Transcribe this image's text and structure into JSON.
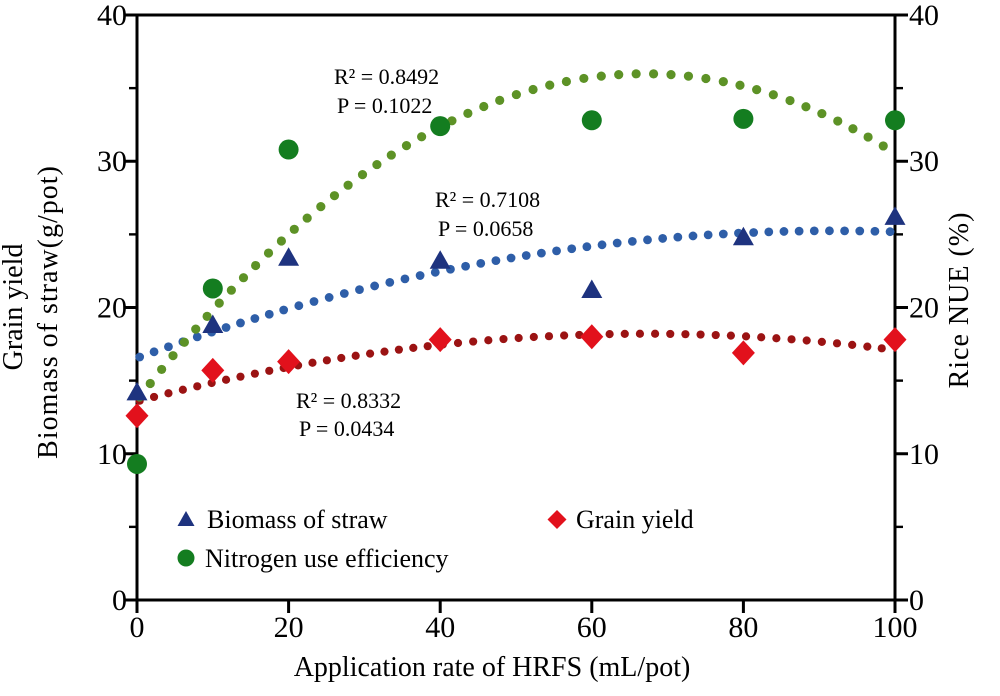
{
  "figure": {
    "x_axis_title": "Application rate of HRFS (mL/pot)",
    "left_axis_title_line1": "Grain yield",
    "left_axis_title_line2": "Biomass of straw(g/pot)",
    "right_axis_title": "Rice NUE (%)"
  },
  "chart_data": {
    "type": "scatter",
    "title": "",
    "xlabel": "Application rate of HRFS (mL/pot)",
    "ylabel_left": "Grain yield / Biomass of straw(g/pot)",
    "ylabel_right": "Rice NUE (%)",
    "xlim": [
      0,
      100
    ],
    "ylim_left": [
      0,
      40
    ],
    "ylim_right": [
      0,
      40
    ],
    "x_tick_labels": [
      "0",
      "20",
      "40",
      "60",
      "80",
      "100"
    ],
    "left_y_tick_labels": [
      "40",
      "30",
      "20",
      "10",
      "0"
    ],
    "right_y_tick_labels": [
      "40",
      "30",
      "20",
      "10",
      "0"
    ],
    "grid": "off",
    "legend_position": "inside-bottom-left",
    "x_values": [
      0,
      10,
      20,
      40,
      60,
      80,
      100
    ],
    "series": [
      {
        "name": "Biomass of straw",
        "axis": "left",
        "marker": "triangle",
        "marker_color": "#1e337f",
        "curve_color": "#2e5ea8",
        "text_color": "#233d8c",
        "values": [
          14.2,
          18.8,
          23.4,
          23.2,
          21.2,
          24.8,
          26.2
        ],
        "fit_type": "quadratic-dotted",
        "fit_coefficients": {
          "a0": 16.55,
          "a1": 0.1894,
          "a2": -0.0010316
        },
        "r2_label": "R² = 0.7108",
        "p_label": "P = 0.0658"
      },
      {
        "name": "Grain yield",
        "axis": "left",
        "marker": "diamond",
        "marker_color": "#e2111c",
        "curve_color": "#9b1313",
        "text_color": "#e2111c",
        "values": [
          12.6,
          15.7,
          16.3,
          17.8,
          18.0,
          16.9,
          17.8
        ],
        "fit_type": "quadratic-dotted",
        "fit_coefficients": {
          "a0": 13.58,
          "a1": 0.1378,
          "a2": -0.0010266
        },
        "r2_label": "R² = 0.8332",
        "p_label": "P = 0.0434"
      },
      {
        "name": "Nitrogen use efficiency",
        "axis": "right",
        "marker": "circle",
        "marker_color": "#147d20",
        "curve_color": "#5d9226",
        "text_color": "#107c2e",
        "values": [
          9.3,
          21.3,
          30.8,
          32.4,
          32.8,
          32.9,
          32.8
        ],
        "fit_type": "quadratic-dotted",
        "fit_coefficients": {
          "a0": 13.65,
          "a1": 0.667,
          "a2": -0.0049801
        },
        "r2_label": "R² = 0.8492",
        "p_label": "P = 0.1022"
      }
    ]
  },
  "legend": {
    "items": [
      {
        "label": "Biomass of straw"
      },
      {
        "label": "Grain yield"
      },
      {
        "label": "Nitrogen use efficiency"
      }
    ]
  }
}
